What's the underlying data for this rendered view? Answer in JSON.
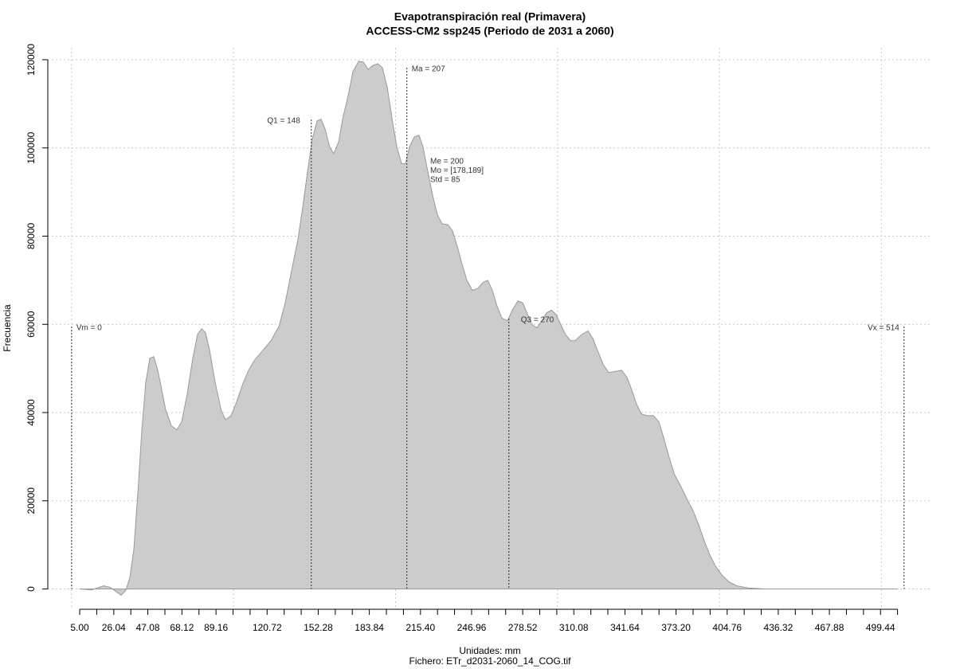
{
  "chart_data": {
    "type": "area",
    "title": "Evapotranspiración real (Primavera)",
    "subtitle": "ACCESS-CM2 ssp245 (Periodo de 2031 a 2060)",
    "x_label": "Unidades: mm",
    "caption": "Fichero: ETr_d2031-2060_14_COG.tif",
    "y_label": "Frecuencia",
    "color": "#cccccc",
    "line_color": "#999999",
    "grid": true,
    "xlim": [
      -14.7,
      531.3
    ],
    "ylim": [
      -4600,
      122700
    ],
    "xgrid": [
      0,
      100,
      200,
      300,
      400,
      500
    ],
    "yticks": [
      0,
      20000,
      40000,
      60000,
      80000,
      100000,
      120000
    ],
    "xticks": [
      {
        "value": 5,
        "label": "5.00"
      },
      {
        "value": 26.04,
        "label": "26.04"
      },
      {
        "value": 47.08,
        "label": "47.08"
      },
      {
        "value": 68.12,
        "label": "68.12"
      },
      {
        "value": 89.16,
        "label": "89.16"
      },
      {
        "value": 120.72,
        "label": "120.72"
      },
      {
        "value": 152.28,
        "label": "152.28"
      },
      {
        "value": 183.84,
        "label": "183.84"
      },
      {
        "value": 215.4,
        "label": "215.40"
      },
      {
        "value": 246.96,
        "label": "246.96"
      },
      {
        "value": 278.52,
        "label": "278.52"
      },
      {
        "value": 310.08,
        "label": "310.08"
      },
      {
        "value": 341.64,
        "label": "341.64"
      },
      {
        "value": 373.2,
        "label": "373.20"
      },
      {
        "value": 404.76,
        "label": "404.76"
      },
      {
        "value": 436.32,
        "label": "436.32"
      },
      {
        "value": 467.88,
        "label": "467.88"
      },
      {
        "value": 499.44,
        "label": "499.44"
      }
    ],
    "xticks_minor": [
      5,
      15.52,
      26.04,
      36.56,
      47.08,
      57.6,
      68.12,
      78.64,
      89.16,
      99.68,
      110.2,
      120.72,
      131.24,
      141.76,
      152.28,
      162.8,
      173.32,
      183.84,
      194.36,
      204.88,
      215.4,
      225.92,
      236.44,
      246.96,
      257.48,
      268,
      278.52,
      289.04,
      299.56,
      310.08,
      320.6,
      331.12,
      341.64,
      352.16,
      362.68,
      373.2,
      383.72,
      394.24,
      404.76,
      415.28,
      425.8,
      436.32,
      446.84,
      457.36,
      467.88,
      478.4,
      488.92,
      499.44,
      509.96
    ],
    "x": [
      5,
      12.4,
      19.8,
      23.7,
      27.1,
      30.6,
      33.5,
      36,
      38.4,
      40.9,
      43.4,
      45.8,
      48.3,
      50.7,
      53.2,
      55.7,
      58.1,
      61.6,
      65,
      68,
      71.4,
      74.8,
      77.8,
      80.3,
      82.7,
      85.2,
      88.6,
      92.3,
      95,
      98.5,
      101.9,
      105.8,
      109.3,
      113.2,
      118.1,
      123.1,
      128,
      132,
      135.8,
      139.8,
      142.7,
      145.7,
      148.6,
      151.6,
      154,
      156.5,
      159.4,
      161.9,
      164.9,
      167.3,
      170.8,
      173.7,
      177.2,
      180.1,
      183.1,
      186,
      189,
      191.9,
      194.9,
      197.9,
      200.8,
      203.8,
      206.2,
      208.6,
      211.6,
      214.5,
      217,
      219.9,
      222.9,
      225.9,
      228.8,
      232.3,
      235.2,
      238.2,
      241.1,
      244.1,
      247.5,
      251,
      253.9,
      256.9,
      259.8,
      262.7,
      265.7,
      269.1,
      272.1,
      275.5,
      278.5,
      281.4,
      284.4,
      287.3,
      290.3,
      293.2,
      296.2,
      299.1,
      302.1,
      305,
      308,
      310.9,
      314.9,
      318.8,
      321.8,
      324.7,
      328.2,
      331.6,
      335.5,
      339.5,
      342.9,
      345.9,
      348.8,
      351.8,
      355.2,
      359.2,
      362.6,
      365.6,
      369,
      372.4,
      376.4,
      379.9,
      383.8,
      387.3,
      390.7,
      394.2,
      397.7,
      401.5,
      405.9,
      410.8,
      418.2,
      428,
      447.7,
      510
    ],
    "values": [
      0,
      -200,
      700,
      400,
      -500,
      -1400,
      -300,
      2700,
      9000,
      21700,
      36100,
      46900,
      52300,
      52700,
      49600,
      45100,
      40600,
      37000,
      36100,
      37900,
      44200,
      52300,
      57700,
      59000,
      58100,
      54100,
      46900,
      40600,
      38400,
      39300,
      42400,
      46600,
      49600,
      52000,
      54100,
      56300,
      59500,
      65000,
      72200,
      79400,
      86600,
      94700,
      102000,
      106100,
      106500,
      104300,
      100200,
      98700,
      101400,
      106500,
      111900,
      117300,
      119600,
      119500,
      117800,
      118700,
      119100,
      118200,
      113700,
      106500,
      100200,
      96400,
      96500,
      100200,
      102500,
      102900,
      100200,
      94700,
      89300,
      84800,
      82800,
      82600,
      81200,
      77600,
      73600,
      70000,
      67700,
      68200,
      69500,
      70000,
      67700,
      64100,
      61400,
      60800,
      63200,
      65300,
      64900,
      62300,
      59900,
      59200,
      60800,
      62600,
      63200,
      62300,
      59900,
      57700,
      56300,
      56300,
      57700,
      58500,
      56800,
      54100,
      50900,
      49100,
      49300,
      49600,
      48000,
      45100,
      41900,
      39700,
      39300,
      39300,
      37900,
      34300,
      29800,
      25800,
      23100,
      20400,
      17700,
      14400,
      10800,
      7600,
      5100,
      3200,
      1600,
      700,
      200,
      0,
      0,
      0
    ],
    "markers": [
      {
        "label": "Vm = 0",
        "value": 0
      },
      {
        "label": "Q1 = 148",
        "value": 148
      },
      {
        "label": "Ma = 207",
        "value": 207
      },
      {
        "label": "Q3 = 270",
        "value": 270
      },
      {
        "label": "Vx = 514",
        "value": 514
      }
    ],
    "stats": [
      "Me = 200",
      "Mo = [178,189]",
      "Std = 85"
    ]
  }
}
